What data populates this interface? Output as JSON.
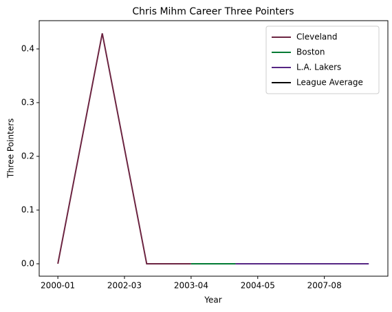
{
  "chart_data": {
    "type": "line",
    "title": "Chris Mihm Career Three Pointers",
    "xlabel": "Year",
    "ylabel": "Three Pointers",
    "series": [
      {
        "name": "Cleveland",
        "color": "#6b2340",
        "x": [
          0,
          1,
          2,
          3
        ],
        "values": [
          0,
          0.429,
          0,
          0
        ]
      },
      {
        "name": "Boston",
        "color": "#007a33",
        "x": [
          3,
          4
        ],
        "values": [
          0,
          0
        ]
      },
      {
        "name": "L.A. Lakers",
        "color": "#552583",
        "x": [
          4,
          5,
          6,
          7
        ],
        "values": [
          0,
          0,
          0,
          0
        ]
      },
      {
        "name": "League Average",
        "color": "#000000",
        "x": [],
        "values": []
      }
    ],
    "xlim": [
      -0.42,
      7.43
    ],
    "xticks": [
      {
        "value": 0,
        "label": "2000-01"
      },
      {
        "value": 1.5,
        "label": "2002-03"
      },
      {
        "value": 3,
        "label": "2003-04"
      },
      {
        "value": 4.5,
        "label": "2004-05"
      },
      {
        "value": 6,
        "label": "2007-08"
      }
    ],
    "ylim": [
      -0.0231,
      0.4526
    ],
    "yticks": [
      {
        "value": 0,
        "label": "0.0"
      },
      {
        "value": 0.1,
        "label": "0.1"
      },
      {
        "value": 0.2,
        "label": "0.2"
      },
      {
        "value": 0.3,
        "label": "0.3"
      },
      {
        "value": 0.4,
        "label": "0.4"
      }
    ],
    "legend": "upper right",
    "grid": false
  }
}
